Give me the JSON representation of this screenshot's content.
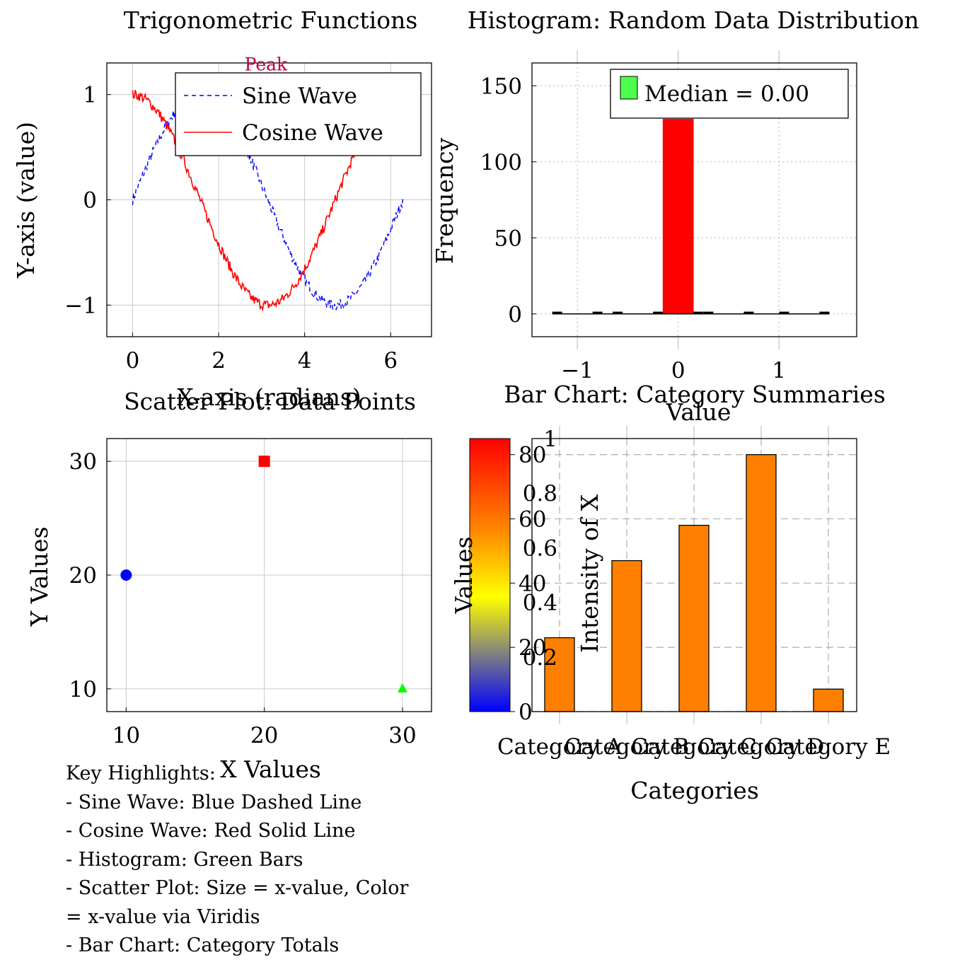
{
  "chart_data": [
    {
      "id": "trig",
      "type": "line",
      "title": "Trigonometric Functions",
      "xlabel": "X-axis (radians)",
      "ylabel": "Y-axis (value)",
      "xlim": [
        -0.6,
        6.95
      ],
      "ylim": [
        -1.3,
        1.3
      ],
      "xticks": [
        0,
        2,
        4,
        6
      ],
      "yticks": [
        -1,
        0,
        1
      ],
      "grid": true,
      "legend": "top-right",
      "series": [
        {
          "name": "Sine Wave",
          "func": "sin",
          "x_range": [
            0,
            6.2832
          ],
          "noise": 0.1,
          "color": "#0000ff",
          "style": "dashed"
        },
        {
          "name": "Cosine Wave",
          "func": "cos",
          "x_range": [
            0,
            6.2832
          ],
          "noise": 0.1,
          "color": "#ff0000",
          "style": "solid"
        }
      ],
      "annotations": [
        {
          "text": "Peak",
          "x": 3.1,
          "y": 1.23,
          "color": "#bf0040"
        }
      ]
    },
    {
      "id": "hist",
      "type": "bar",
      "title": "Histogram: Random Data Distribution",
      "xlabel": "Value",
      "ylabel": "Frequency",
      "xlim": [
        -1.45,
        1.77
      ],
      "ylim": [
        -15,
        165
      ],
      "xticks": [
        -1,
        0,
        1
      ],
      "yticks": [
        0,
        50,
        100,
        150
      ],
      "grid": "dotted",
      "legend": "top-right",
      "legend_entries": [
        {
          "name": "Median = 0.00",
          "color": "#4dff4d"
        }
      ],
      "bars": [
        {
          "x": -1.2,
          "value": 1
        },
        {
          "x": -0.8,
          "value": 1
        },
        {
          "x": -0.6,
          "value": 1
        },
        {
          "x": -0.2,
          "value": 1
        },
        {
          "x": 0,
          "value": 128,
          "highlight": true
        },
        {
          "x": 0.2,
          "value": 1
        },
        {
          "x": 0.3,
          "value": 1
        },
        {
          "x": 0.7,
          "value": 1
        },
        {
          "x": 1.05,
          "value": 1
        },
        {
          "x": 1.45,
          "value": 1
        }
      ],
      "bar_color": "#ff0000"
    },
    {
      "id": "scatter",
      "type": "scatter",
      "title": "Scatter Plot: Data Points",
      "xlabel": "X Values",
      "ylabel": "Y Values",
      "xlim": [
        8.6,
        32.1
      ],
      "ylim": [
        8,
        32
      ],
      "xticks": [
        10,
        20,
        30
      ],
      "yticks": [
        10,
        20,
        30
      ],
      "grid": true,
      "points": [
        {
          "x": 10,
          "y": 20,
          "marker": "circle",
          "color": "#0000ff"
        },
        {
          "x": 20,
          "y": 30,
          "marker": "square",
          "color": "#ff0000"
        },
        {
          "x": 30,
          "y": 10,
          "marker": "triangle",
          "color": "#00ff00"
        }
      ]
    },
    {
      "id": "bars",
      "type": "bar",
      "title": "Bar Chart: Category Summaries",
      "xlabel": "Categories",
      "ylabel": "Values",
      "ylabel_secondary": "Intensity of X",
      "categories": [
        "Category A",
        "Category B",
        "Category C",
        "Category D",
        "Category E"
      ],
      "values": [
        23,
        47,
        58,
        80,
        7
      ],
      "ylim": [
        0,
        85
      ],
      "yticks": [
        0,
        20,
        40,
        60,
        80
      ],
      "secondary_ylim": [
        0,
        1
      ],
      "secondary_yticks": [
        "0.2",
        "0.4",
        "0.6",
        "0.8",
        "1"
      ],
      "grid": "dashed",
      "bar_color": "#ff8000",
      "colorbar": {
        "ticks": [
          0,
          20,
          40,
          60,
          80
        ],
        "range": [
          0,
          85
        ],
        "colors": [
          "#0000ff",
          "#ffff00",
          "#ff8000",
          "#ff0000"
        ]
      }
    }
  ],
  "notes": {
    "lines": [
      "Key Highlights:",
      "- Sine Wave: Blue Dashed Line",
      "- Cosine Wave: Red Solid Line",
      "- Histogram: Green Bars",
      "- Scatter Plot: Size = x-value, Color",
      "= x-value via Viridis",
      "- Bar Chart: Category Totals"
    ]
  }
}
